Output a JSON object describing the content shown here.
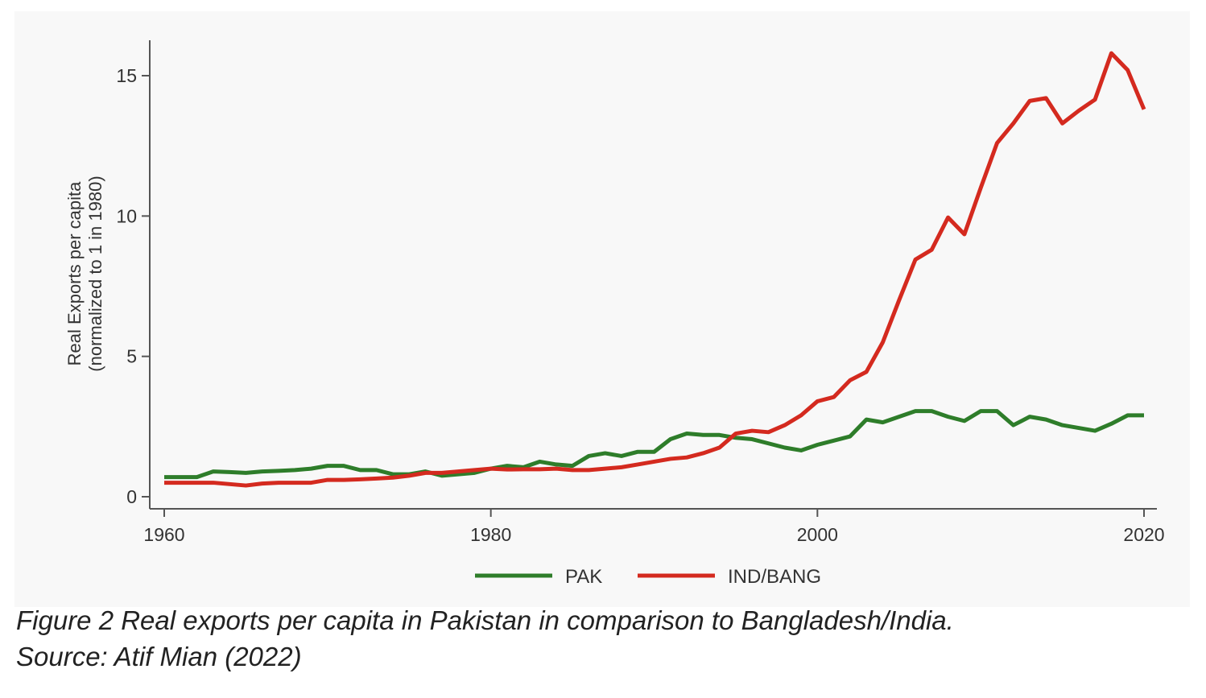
{
  "chart_data": {
    "type": "line",
    "title": "",
    "xlabel": "",
    "ylabel_line1": "Real Exports per capita",
    "ylabel_line2": "(normalized to 1 in 1980)",
    "xlim": [
      1960,
      2020
    ],
    "ylim": [
      0,
      16
    ],
    "xticks": [
      1960,
      1980,
      2000,
      2020
    ],
    "yticks": [
      0,
      5,
      10,
      15
    ],
    "grid": false,
    "legend_position": "bottom",
    "x": [
      1960,
      1961,
      1962,
      1963,
      1964,
      1965,
      1966,
      1967,
      1968,
      1969,
      1970,
      1971,
      1972,
      1973,
      1974,
      1975,
      1976,
      1977,
      1978,
      1979,
      1980,
      1981,
      1982,
      1983,
      1984,
      1985,
      1986,
      1987,
      1988,
      1989,
      1990,
      1991,
      1992,
      1993,
      1994,
      1995,
      1996,
      1997,
      1998,
      1999,
      2000,
      2001,
      2002,
      2003,
      2004,
      2005,
      2006,
      2007,
      2008,
      2009,
      2010,
      2011,
      2012,
      2013,
      2014,
      2015,
      2016,
      2017,
      2018,
      2019,
      2020
    ],
    "series": [
      {
        "name": "PAK",
        "color": "#2e7d2a",
        "values": [
          0.7,
          0.7,
          0.7,
          0.9,
          0.88,
          0.85,
          0.9,
          0.92,
          0.95,
          1.0,
          1.1,
          1.1,
          0.95,
          0.95,
          0.8,
          0.8,
          0.9,
          0.75,
          0.8,
          0.85,
          1.0,
          1.1,
          1.05,
          1.25,
          1.15,
          1.1,
          1.45,
          1.55,
          1.45,
          1.6,
          1.6,
          2.05,
          2.25,
          2.2,
          2.2,
          2.1,
          2.05,
          1.9,
          1.75,
          1.65,
          1.85,
          2.0,
          2.15,
          2.75,
          2.65,
          2.85,
          3.05,
          3.05,
          2.85,
          2.7,
          3.05,
          3.05,
          2.55,
          2.85,
          2.75,
          2.55,
          2.45,
          2.35,
          2.6,
          2.9,
          2.9
        ]
      },
      {
        "name": "IND/BANG",
        "color": "#d42a1f",
        "values": [
          0.5,
          0.5,
          0.5,
          0.5,
          0.45,
          0.4,
          0.47,
          0.5,
          0.5,
          0.5,
          0.6,
          0.6,
          0.62,
          0.65,
          0.68,
          0.75,
          0.85,
          0.85,
          0.9,
          0.95,
          1.0,
          0.97,
          0.98,
          0.98,
          1.0,
          0.95,
          0.95,
          1.0,
          1.05,
          1.15,
          1.25,
          1.35,
          1.4,
          1.55,
          1.75,
          2.25,
          2.35,
          2.3,
          2.55,
          2.9,
          3.4,
          3.55,
          4.15,
          4.45,
          5.5,
          7.0,
          8.45,
          8.8,
          9.95,
          9.35,
          11.0,
          12.6,
          13.3,
          14.1,
          14.2,
          13.3,
          13.75,
          14.15,
          15.8,
          15.2,
          13.8
        ]
      }
    ]
  },
  "caption": {
    "line1": "Figure 2 Real exports per capita in Pakistan in comparison to Bangladesh/India.",
    "line2": "Source: Atif Mian (2022)"
  }
}
